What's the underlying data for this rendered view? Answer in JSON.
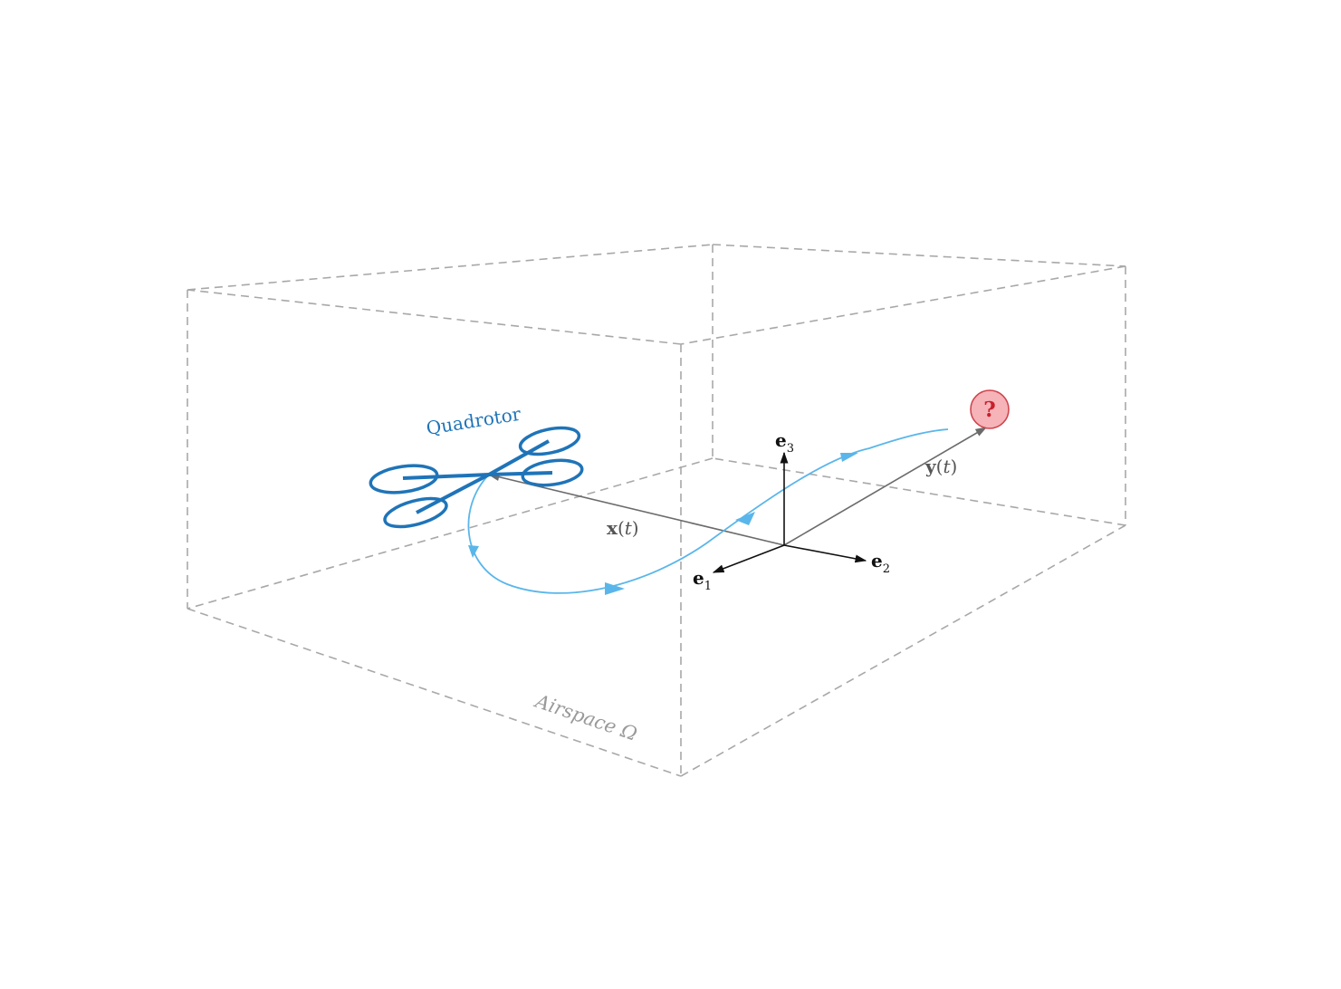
{
  "labels": {
    "quadrotor": "Quadrotor",
    "airspace_name": "Airspace",
    "airspace_symbol": "Ω",
    "x_vector_bold": "x",
    "x_vector_arg": "t",
    "y_vector_bold": "y",
    "y_vector_arg": "t",
    "e1_base": "e",
    "e1_sub": "1",
    "e2_base": "e",
    "e2_sub": "2",
    "e3_base": "e",
    "e3_sub": "3",
    "target_marker": "?"
  },
  "colors": {
    "quadrotor": "#1f74b8",
    "trajectory": "#5ab6ea",
    "box_edges": "#a8a8a8",
    "axes": "#111111",
    "vectors": "#6b6b6b",
    "target_fill": "#f6b3b8",
    "target_stroke": "#d0454f",
    "target_text": "#c8202c"
  },
  "icons": {
    "quadrotor": "quadrotor-icon",
    "target": "question-mark-icon"
  }
}
